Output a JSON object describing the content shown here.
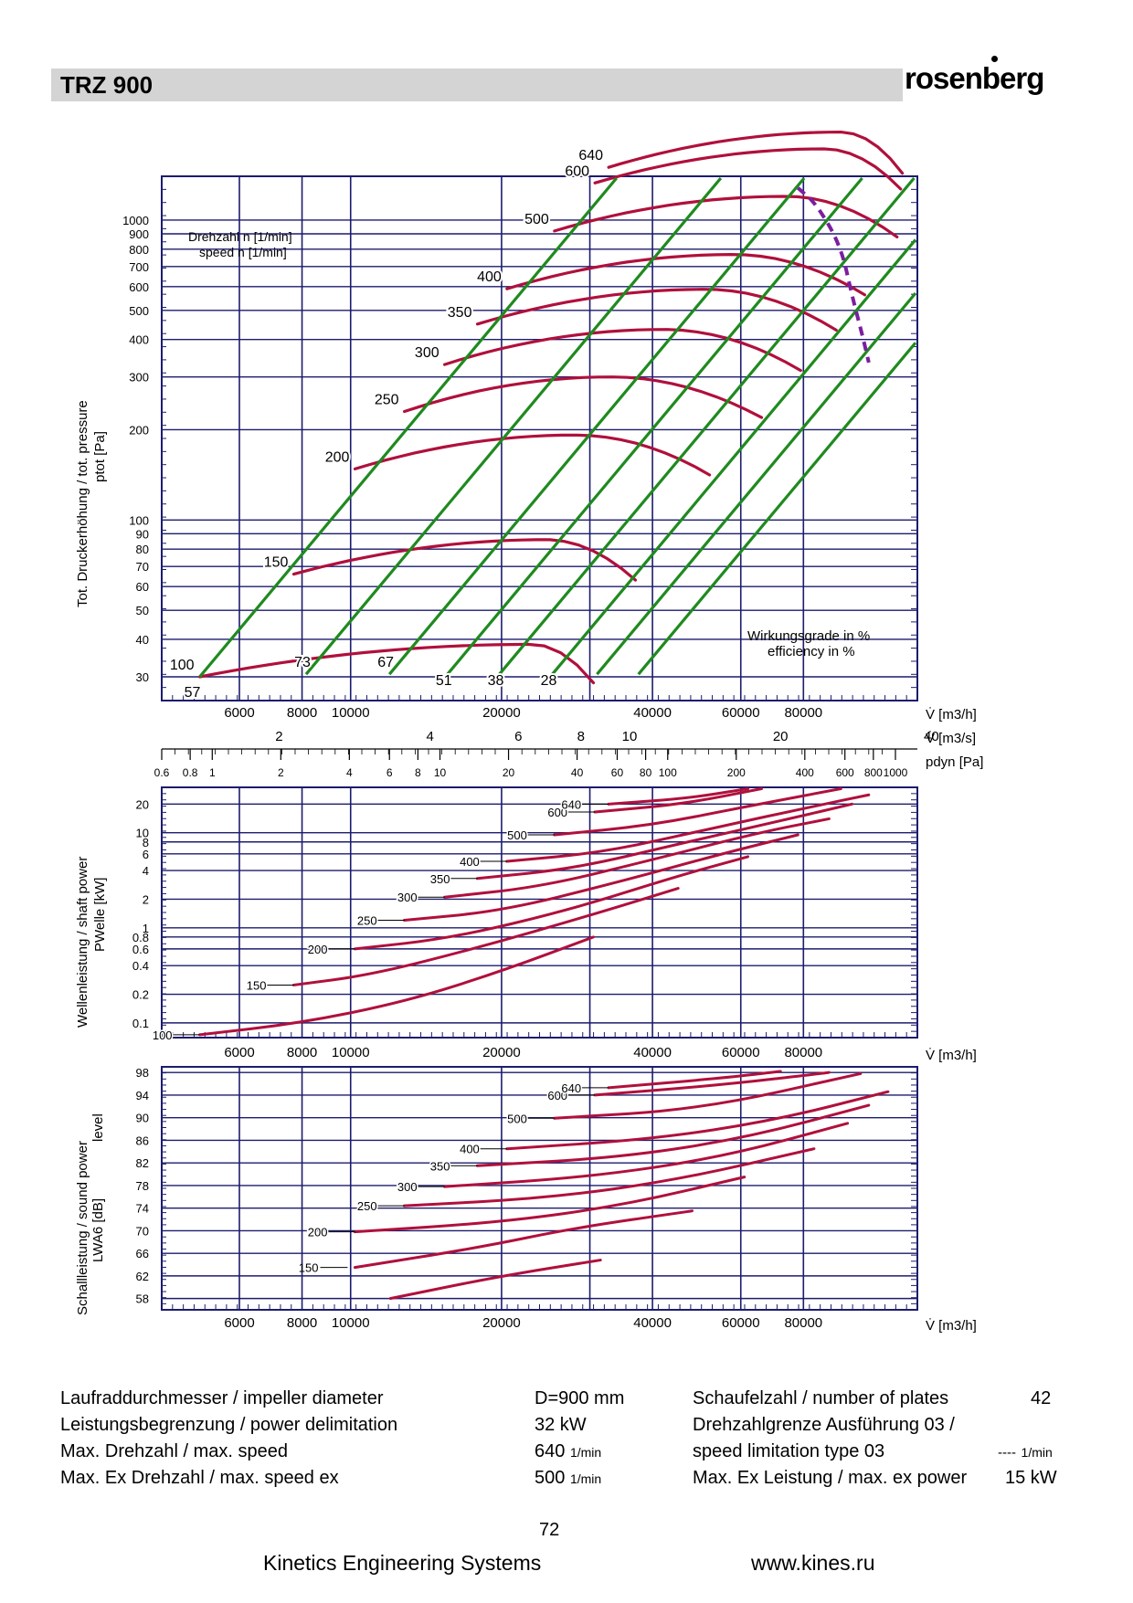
{
  "header": {
    "title": "TRZ 900",
    "logo": "rosenberg"
  },
  "chart_data": [
    {
      "type": "line",
      "ylabel": "Tot. Druckerhöhung / tot. pressure",
      "ylabel2": "ptot [Pa]",
      "xlabel": "V̇ [m3/h]",
      "xlabel_s": "V̇ [m3/s]",
      "xlabel_pdyn": "pdyn [Pa]",
      "xscale": "log",
      "yscale": "log",
      "xlim": [
        4200,
        135000
      ],
      "ylim": [
        25,
        1400
      ],
      "x_ticks": [
        {
          "v": 6000,
          "t": "6000"
        },
        {
          "v": 8000,
          "t": "8000"
        },
        {
          "v": 10000,
          "t": "10000"
        },
        {
          "v": 20000,
          "t": "20000"
        },
        {
          "v": 40000,
          "t": "40000"
        },
        {
          "v": 60000,
          "t": "60000"
        },
        {
          "v": 80000,
          "t": "80000"
        }
      ],
      "xs_ticks": [
        {
          "v": 2,
          "t": "2"
        },
        {
          "v": 4,
          "t": "4"
        },
        {
          "v": 6,
          "t": "6"
        },
        {
          "v": 8,
          "t": "8"
        },
        {
          "v": 10,
          "t": "10"
        },
        {
          "v": 20,
          "t": "20"
        },
        {
          "v": 40,
          "t": "40"
        }
      ],
      "pdyn_ticks": [
        {
          "v": 0.6,
          "t": "0.6"
        },
        {
          "v": 0.8,
          "t": "0.8"
        },
        {
          "v": 1,
          "t": "1"
        },
        {
          "v": 2,
          "t": "2"
        },
        {
          "v": 4,
          "t": "4"
        },
        {
          "v": 6,
          "t": "6"
        },
        {
          "v": 8,
          "t": "8"
        },
        {
          "v": 10,
          "t": "10"
        },
        {
          "v": 20,
          "t": "20"
        },
        {
          "v": 40,
          "t": "40"
        },
        {
          "v": 60,
          "t": "60"
        },
        {
          "v": 80,
          "t": "80"
        },
        {
          "v": 100,
          "t": "100"
        },
        {
          "v": 200,
          "t": "200"
        },
        {
          "v": 400,
          "t": "400"
        },
        {
          "v": 600,
          "t": "600"
        },
        {
          "v": 800,
          "t": "800"
        },
        {
          "v": 1000,
          "t": "1000"
        }
      ],
      "y_ticks": [
        {
          "v": 30,
          "t": "30"
        },
        {
          "v": 40,
          "t": "40"
        },
        {
          "v": 50,
          "t": "50"
        },
        {
          "v": 60,
          "t": "60"
        },
        {
          "v": 70,
          "t": "70"
        },
        {
          "v": 80,
          "t": "80"
        },
        {
          "v": 90,
          "t": "90"
        },
        {
          "v": 100,
          "t": "100"
        },
        {
          "v": 200,
          "t": "200"
        },
        {
          "v": 300,
          "t": "300"
        },
        {
          "v": 400,
          "t": "400"
        },
        {
          "v": 500,
          "t": "500"
        },
        {
          "v": 600,
          "t": "600"
        },
        {
          "v": 700,
          "t": "700"
        },
        {
          "v": 800,
          "t": "800"
        },
        {
          "v": 900,
          "t": "900"
        },
        {
          "v": 1000,
          "t": "1000"
        }
      ],
      "speed_label_1": "Drehzahl n [1/min]",
      "speed_label_2": "speed n [1/min]",
      "efficiency_label_1": "Wirkungsgrade in %",
      "efficiency_label_2": "efficiency in %",
      "speeds": [
        {
          "n": "100",
          "x0": 5000,
          "peak": 23000,
          "y0": 30,
          "yp": 38.5,
          "xe": 30500
        },
        {
          "n": "150",
          "x0": 7700,
          "peak": 24500,
          "y0": 66,
          "yp": 86,
          "xe": 37000
        },
        {
          "n": "200",
          "x0": 10200,
          "peak": 28000,
          "y0": 148,
          "yp": 192,
          "xe": 52000
        },
        {
          "n": "250",
          "x0": 12800,
          "peak": 33000,
          "y0": 230,
          "yp": 300,
          "xe": 66000
        },
        {
          "n": "300",
          "x0": 15400,
          "peak": 42000,
          "y0": 330,
          "yp": 432,
          "xe": 79000
        },
        {
          "n": "350",
          "x0": 17900,
          "peak": 51000,
          "y0": 450,
          "yp": 588,
          "xe": 93000
        },
        {
          "n": "400",
          "x0": 20500,
          "peak": 58000,
          "y0": 590,
          "yp": 768,
          "xe": 106000
        },
        {
          "n": "500",
          "x0": 25500,
          "peak": 74000,
          "y0": 920,
          "yp": 1200,
          "xe": 123000
        },
        {
          "n": "600",
          "x0": 30700,
          "peak": 88000,
          "y0": 1330,
          "yp": 1728,
          "xe": 125000
        },
        {
          "n": "640",
          "x0": 32700,
          "peak": 95000,
          "y0": 1500,
          "yp": 1966,
          "xe": 126000
        }
      ],
      "efficiency_lines": [
        {
          "eta": "57",
          "k": 1.0
        },
        {
          "eta": "73",
          "k": 1.63
        },
        {
          "eta": "67",
          "k": 2.39
        },
        {
          "eta": "51",
          "k": 3.12
        },
        {
          "eta": "38",
          "k": 3.96
        },
        {
          "eta": "28",
          "k": 5.05
        },
        {
          "eta": "",
          "k": 6.2
        },
        {
          "eta": "",
          "k": 7.5
        }
      ],
      "limit_line": {
        "style": "dashed",
        "color": "#7a1fa0"
      }
    },
    {
      "type": "line",
      "ylabel": "Wellenleistung / shaft power",
      "ylabel2": "PWelle [kW]",
      "xlabel": "V̇ [m3/h]",
      "xscale": "log",
      "yscale": "log",
      "xlim": [
        4200,
        135000
      ],
      "ylim": [
        0.07,
        30
      ],
      "y_ticks": [
        {
          "v": 0.1,
          "t": "0.1"
        },
        {
          "v": 0.2,
          "t": "0.2"
        },
        {
          "v": 0.4,
          "t": "0.4"
        },
        {
          "v": 0.6,
          "t": "0.6"
        },
        {
          "v": 0.8,
          "t": "0.8"
        },
        {
          "v": 1,
          "t": "1"
        },
        {
          "v": 2,
          "t": "2"
        },
        {
          "v": 4,
          "t": "4"
        },
        {
          "v": 6,
          "t": "6"
        },
        {
          "v": 8,
          "t": "8"
        },
        {
          "v": 10,
          "t": "10"
        },
        {
          "v": 20,
          "t": "20"
        }
      ],
      "x_ticks": [
        {
          "v": 6000,
          "t": "6000"
        },
        {
          "v": 8000,
          "t": "8000"
        },
        {
          "v": 10000,
          "t": "10000"
        },
        {
          "v": 20000,
          "t": "20000"
        },
        {
          "v": 40000,
          "t": "40000"
        },
        {
          "v": 60000,
          "t": "60000"
        },
        {
          "v": 80000,
          "t": "80000"
        }
      ],
      "series": [
        {
          "name": "100",
          "pts": [
            [
              5000,
              0.075
            ],
            [
              8000,
              0.1
            ],
            [
              13000,
              0.17
            ],
            [
              20000,
              0.35
            ],
            [
              30500,
              0.8
            ]
          ]
        },
        {
          "name": "150",
          "pts": [
            [
              7700,
              0.25
            ],
            [
              11000,
              0.32
            ],
            [
              18000,
              0.62
            ],
            [
              30000,
              1.35
            ],
            [
              45000,
              2.6
            ]
          ]
        },
        {
          "name": "200",
          "pts": [
            [
              10200,
              0.6
            ],
            [
              16000,
              0.78
            ],
            [
              28000,
              1.6
            ],
            [
              44000,
              3.4
            ],
            [
              62000,
              5.6
            ]
          ]
        },
        {
          "name": "250",
          "pts": [
            [
              12800,
              1.2
            ],
            [
              20000,
              1.5
            ],
            [
              34000,
              3.0
            ],
            [
              55000,
              6.0
            ],
            [
              78000,
              9.5
            ]
          ]
        },
        {
          "name": "300",
          "pts": [
            [
              15400,
              2.1
            ],
            [
              24000,
              2.7
            ],
            [
              40000,
              5.2
            ],
            [
              65000,
              10
            ],
            [
              90000,
              14
            ]
          ]
        },
        {
          "name": "350",
          "pts": [
            [
              17900,
              3.3
            ],
            [
              28000,
              4.2
            ],
            [
              46000,
              7.8
            ],
            [
              75000,
              14
            ],
            [
              100000,
              20
            ]
          ]
        },
        {
          "name": "400",
          "pts": [
            [
              20500,
              5.0
            ],
            [
              32000,
              6.2
            ],
            [
              52000,
              11
            ],
            [
              84000,
              19
            ],
            [
              108000,
              25
            ]
          ]
        },
        {
          "name": "500",
          "pts": [
            [
              25500,
              9.5
            ],
            [
              40000,
              12
            ],
            [
              62000,
              19
            ],
            [
              95000,
              29
            ]
          ]
        },
        {
          "name": "600",
          "pts": [
            [
              30700,
              16.5
            ],
            [
              46000,
              20
            ],
            [
              66000,
              29
            ]
          ]
        },
        {
          "name": "640",
          "pts": [
            [
              32700,
              20
            ],
            [
              47000,
              23
            ],
            [
              62000,
              29
            ]
          ]
        }
      ]
    },
    {
      "type": "line",
      "ylabel": "Schallleistung / sound power",
      "ylabel_b": "level",
      "ylabel2": "LWA6 [dB]",
      "xlabel": "V̇ [m3/h]",
      "xscale": "log",
      "xlim": [
        4200,
        135000
      ],
      "ylim": [
        56,
        99
      ],
      "y_ticks": [
        {
          "v": 58,
          "t": "58"
        },
        {
          "v": 62,
          "t": "62"
        },
        {
          "v": 66,
          "t": "66"
        },
        {
          "v": 70,
          "t": "70"
        },
        {
          "v": 74,
          "t": "74"
        },
        {
          "v": 78,
          "t": "78"
        },
        {
          "v": 82,
          "t": "82"
        },
        {
          "v": 86,
          "t": "86"
        },
        {
          "v": 90,
          "t": "90"
        },
        {
          "v": 94,
          "t": "94"
        },
        {
          "v": 98,
          "t": "98"
        }
      ],
      "x_ticks": [
        {
          "v": 6000,
          "t": "6000"
        },
        {
          "v": 8000,
          "t": "8000"
        },
        {
          "v": 10000,
          "t": "10000"
        },
        {
          "v": 20000,
          "t": "20000"
        },
        {
          "v": 40000,
          "t": "40000"
        },
        {
          "v": 60000,
          "t": "60000"
        },
        {
          "v": 80000,
          "t": "80000"
        }
      ],
      "series": [
        {
          "name": "",
          "pts": [
            [
              12000,
              58
            ],
            [
              20000,
              62
            ],
            [
              31500,
              64.8
            ]
          ]
        },
        {
          "name": "",
          "pts": [
            [
              10200,
              63.5
            ],
            [
              18000,
              67
            ],
            [
              28000,
              70.5
            ],
            [
              48000,
              73.5
            ]
          ]
        },
        {
          "name": "200",
          "pts": [
            [
              10200,
              69.8
            ],
            [
              20000,
              71.5
            ],
            [
              35000,
              74.5
            ],
            [
              61000,
              79.5
            ]
          ]
        },
        {
          "name": "250",
          "pts": [
            [
              12800,
              74.4
            ],
            [
              25000,
              75.8
            ],
            [
              45000,
              79
            ],
            [
              84000,
              84.5
            ]
          ]
        },
        {
          "name": "300",
          "pts": [
            [
              15400,
              77.8
            ],
            [
              30000,
              79.5
            ],
            [
              55000,
              83
            ],
            [
              98000,
              89
            ]
          ]
        },
        {
          "name": "350",
          "pts": [
            [
              17900,
              81.5
            ],
            [
              35000,
              83
            ],
            [
              62000,
              86.5
            ],
            [
              108000,
              92.2
            ]
          ]
        },
        {
          "name": "400",
          "pts": [
            [
              20500,
              84.5
            ],
            [
              40000,
              86.2
            ],
            [
              70000,
              89.5
            ],
            [
              118000,
              94.6
            ]
          ]
        },
        {
          "name": "500",
          "pts": [
            [
              25500,
              89.9
            ],
            [
              50000,
              91.5
            ],
            [
              104000,
              97.8
            ]
          ]
        },
        {
          "name": "600",
          "pts": [
            [
              30700,
              94
            ],
            [
              55000,
              95.8
            ],
            [
              90000,
              98
            ]
          ]
        },
        {
          "name": "640",
          "pts": [
            [
              32700,
              95.3
            ],
            [
              55000,
              97
            ],
            [
              72000,
              98.2
            ]
          ]
        }
      ]
    }
  ],
  "specs": {
    "r1_label": "Laufraddurchmesser / impeller diameter",
    "r1_value": "D=900 mm",
    "r2_label": "Leistungsbegrenzung / power delimitation",
    "r2_value": "32 kW",
    "r3_label": "Max. Drehzahl / max. speed",
    "r3_value": "640",
    "r3_unit": "1/min",
    "r4_label": "Max. Ex Drehzahl / max. speed ex",
    "r4_value": "500",
    "r4_unit": "1/min",
    "c1_label": "Schaufelzahl / number of plates",
    "c1_value": "42",
    "c2_label": "Drehzahlgrenze Ausführung 03 /",
    "c3_label": "speed limitation type 03",
    "c3_value": "----",
    "c3_unit": "1/min",
    "c4_label": "Max. Ex Leistung / max. ex power",
    "c4_value": "15 kW"
  },
  "footer": {
    "page": "72",
    "company": "Kinetics Engineering Systems",
    "url": "www.kines.ru"
  },
  "colors": {
    "grid": "#1c1c6e",
    "curve": "#b0103c",
    "efficiency": "#1f8a1f",
    "limit": "#7a1fa0",
    "header_bar": "#d4d4d4"
  }
}
